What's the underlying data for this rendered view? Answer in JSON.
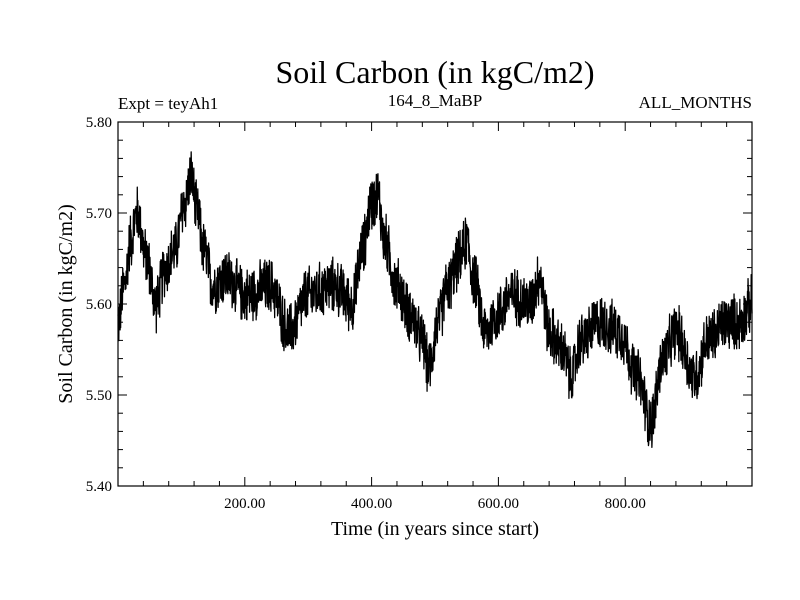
{
  "chart_data": {
    "type": "line",
    "title": "Soil Carbon (in kgC/m2)",
    "subtitle_left": "Expt = teyAh1",
    "subtitle_center": "164_8_MaBP",
    "subtitle_right": "ALL_MONTHS",
    "xlabel": "Time (in years since start)",
    "ylabel": "Soil Carbon (in kgC/m2)",
    "xlim": [
      0,
      1000
    ],
    "ylim": [
      5.4,
      5.8
    ],
    "x_ticks": [
      200,
      400,
      600,
      800
    ],
    "x_tick_labels": [
      "200.00",
      "400.00",
      "600.00",
      "800.00"
    ],
    "y_ticks": [
      5.4,
      5.5,
      5.6,
      5.7,
      5.8
    ],
    "y_tick_labels": [
      "5.40",
      "5.50",
      "5.60",
      "5.70",
      "5.80"
    ],
    "line_color": "#000000",
    "series": [
      {
        "name": "Soil Carbon",
        "anchors_x": [
          0,
          10,
          20,
          30,
          45,
          60,
          75,
          90,
          105,
          115,
          125,
          135,
          150,
          170,
          200,
          240,
          270,
          300,
          340,
          370,
          385,
          400,
          410,
          420,
          440,
          460,
          480,
          490,
          505,
          520,
          540,
          550,
          560,
          580,
          600,
          620,
          650,
          665,
          680,
          700,
          715,
          730,
          760,
          790,
          820,
          840,
          860,
          880,
          910,
          930,
          960,
          980,
          1000
        ],
        "anchors_y": [
          5.58,
          5.62,
          5.67,
          5.7,
          5.65,
          5.6,
          5.64,
          5.66,
          5.71,
          5.74,
          5.7,
          5.66,
          5.62,
          5.63,
          5.61,
          5.62,
          5.57,
          5.61,
          5.62,
          5.6,
          5.66,
          5.71,
          5.72,
          5.67,
          5.62,
          5.59,
          5.56,
          5.53,
          5.58,
          5.62,
          5.65,
          5.67,
          5.63,
          5.57,
          5.59,
          5.61,
          5.6,
          5.63,
          5.57,
          5.55,
          5.52,
          5.56,
          5.58,
          5.57,
          5.52,
          5.47,
          5.54,
          5.57,
          5.52,
          5.56,
          5.58,
          5.58,
          5.6
        ],
        "noise_amplitude": 0.035,
        "sample_count": 2400
      }
    ]
  }
}
